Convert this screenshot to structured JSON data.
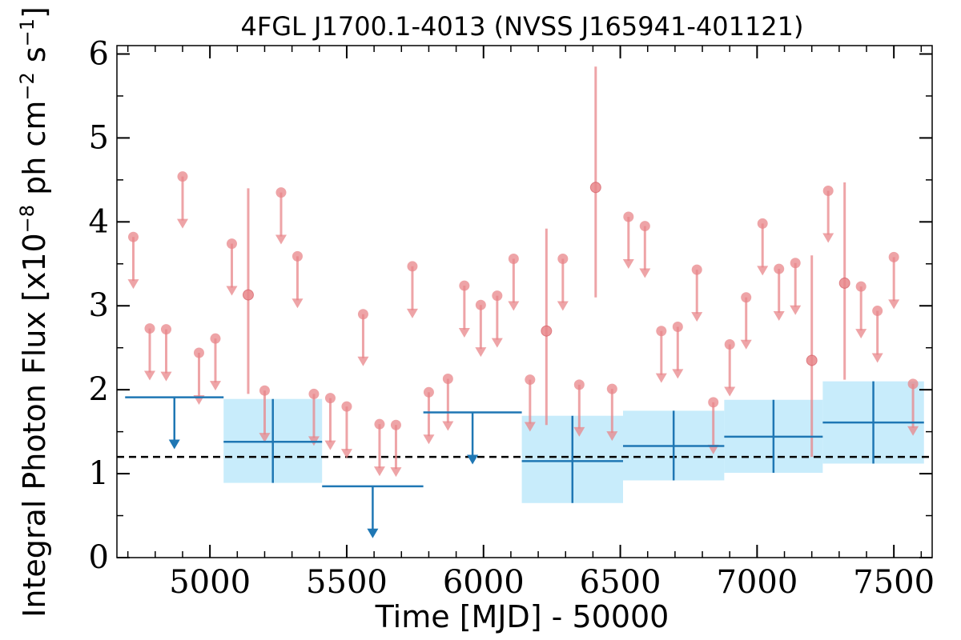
{
  "chart_data": {
    "type": "scatter",
    "title": "4FGL J1700.1-4013 (NVSS J165941-401121)",
    "xlabel": "Time [MJD] - 50000",
    "ylabel_parts": {
      "prefix": "Integral Photon Flux [x10",
      "exp1": "−8",
      "mid": " ph cm",
      "exp2": "−2",
      "mid2": " s",
      "exp3": "−1",
      "suffix": "]"
    },
    "xlim": [
      4660,
      7640
    ],
    "ylim": [
      0,
      6.1
    ],
    "xticks": [
      5000,
      5500,
      6000,
      6500,
      7000,
      7500
    ],
    "yticks": [
      0,
      1,
      2,
      3,
      4,
      5,
      6
    ],
    "reference_flux": 1.2,
    "colors": {
      "short_bins": "#e8868a",
      "long_bins": "#1f77b4",
      "long_band": "#c8ecfb",
      "reference_line": "#000000"
    },
    "short_bins_upper_limits": [
      {
        "x": 4720,
        "y": 3.82
      },
      {
        "x": 4780,
        "y": 2.73
      },
      {
        "x": 4840,
        "y": 2.72
      },
      {
        "x": 4900,
        "y": 4.54
      },
      {
        "x": 4960,
        "y": 2.44
      },
      {
        "x": 5020,
        "y": 2.61
      },
      {
        "x": 5080,
        "y": 3.74
      },
      {
        "x": 5200,
        "y": 1.99
      },
      {
        "x": 5260,
        "y": 4.35
      },
      {
        "x": 5320,
        "y": 3.59
      },
      {
        "x": 5380,
        "y": 1.95
      },
      {
        "x": 5440,
        "y": 1.9
      },
      {
        "x": 5500,
        "y": 1.8
      },
      {
        "x": 5560,
        "y": 2.9
      },
      {
        "x": 5620,
        "y": 1.59
      },
      {
        "x": 5680,
        "y": 1.58
      },
      {
        "x": 5740,
        "y": 3.47
      },
      {
        "x": 5800,
        "y": 1.97
      },
      {
        "x": 5870,
        "y": 2.13
      },
      {
        "x": 5930,
        "y": 3.24
      },
      {
        "x": 5990,
        "y": 3.01
      },
      {
        "x": 6050,
        "y": 3.12
      },
      {
        "x": 6110,
        "y": 3.56
      },
      {
        "x": 6170,
        "y": 2.12
      },
      {
        "x": 6290,
        "y": 3.56
      },
      {
        "x": 6350,
        "y": 2.06
      },
      {
        "x": 6470,
        "y": 2.01
      },
      {
        "x": 6530,
        "y": 4.06
      },
      {
        "x": 6590,
        "y": 3.95
      },
      {
        "x": 6650,
        "y": 2.7
      },
      {
        "x": 6710,
        "y": 2.75
      },
      {
        "x": 6780,
        "y": 3.43
      },
      {
        "x": 6840,
        "y": 1.85
      },
      {
        "x": 6900,
        "y": 2.54
      },
      {
        "x": 6960,
        "y": 3.1
      },
      {
        "x": 7020,
        "y": 3.98
      },
      {
        "x": 7080,
        "y": 3.44
      },
      {
        "x": 7140,
        "y": 3.51
      },
      {
        "x": 7260,
        "y": 4.37
      },
      {
        "x": 7380,
        "y": 3.23
      },
      {
        "x": 7440,
        "y": 2.94
      },
      {
        "x": 7500,
        "y": 3.58
      },
      {
        "x": 7570,
        "y": 2.07
      }
    ],
    "short_bins_detections": [
      {
        "x": 5140,
        "y": 3.13,
        "ylo": 1.95,
        "yhi": 4.4
      },
      {
        "x": 6230,
        "y": 2.7,
        "ylo": 1.58,
        "yhi": 3.92
      },
      {
        "x": 6410,
        "y": 4.41,
        "ylo": 3.1,
        "yhi": 5.85
      },
      {
        "x": 7200,
        "y": 2.35,
        "ylo": 1.2,
        "yhi": 3.6
      },
      {
        "x": 7320,
        "y": 3.27,
        "ylo": 2.12,
        "yhi": 4.47
      }
    ],
    "long_bins_upper_limits": [
      {
        "x0": 4690,
        "x1": 5050,
        "y": 1.91
      },
      {
        "x0": 5410,
        "x1": 5780,
        "y": 0.85
      },
      {
        "x0": 5780,
        "x1": 6140,
        "y": 1.73
      }
    ],
    "long_bins_detections": [
      {
        "x0": 5050,
        "x1": 5410,
        "y": 1.38,
        "ylo": 0.89,
        "yhi": 1.89
      },
      {
        "x0": 6140,
        "x1": 6510,
        "y": 1.15,
        "ylo": 0.65,
        "yhi": 1.69
      },
      {
        "x0": 6510,
        "x1": 6880,
        "y": 1.33,
        "ylo": 0.92,
        "yhi": 1.75
      },
      {
        "x0": 6880,
        "x1": 7240,
        "y": 1.44,
        "ylo": 1.01,
        "yhi": 1.88
      },
      {
        "x0": 7240,
        "x1": 7610,
        "y": 1.61,
        "ylo": 1.12,
        "yhi": 2.1
      }
    ]
  }
}
